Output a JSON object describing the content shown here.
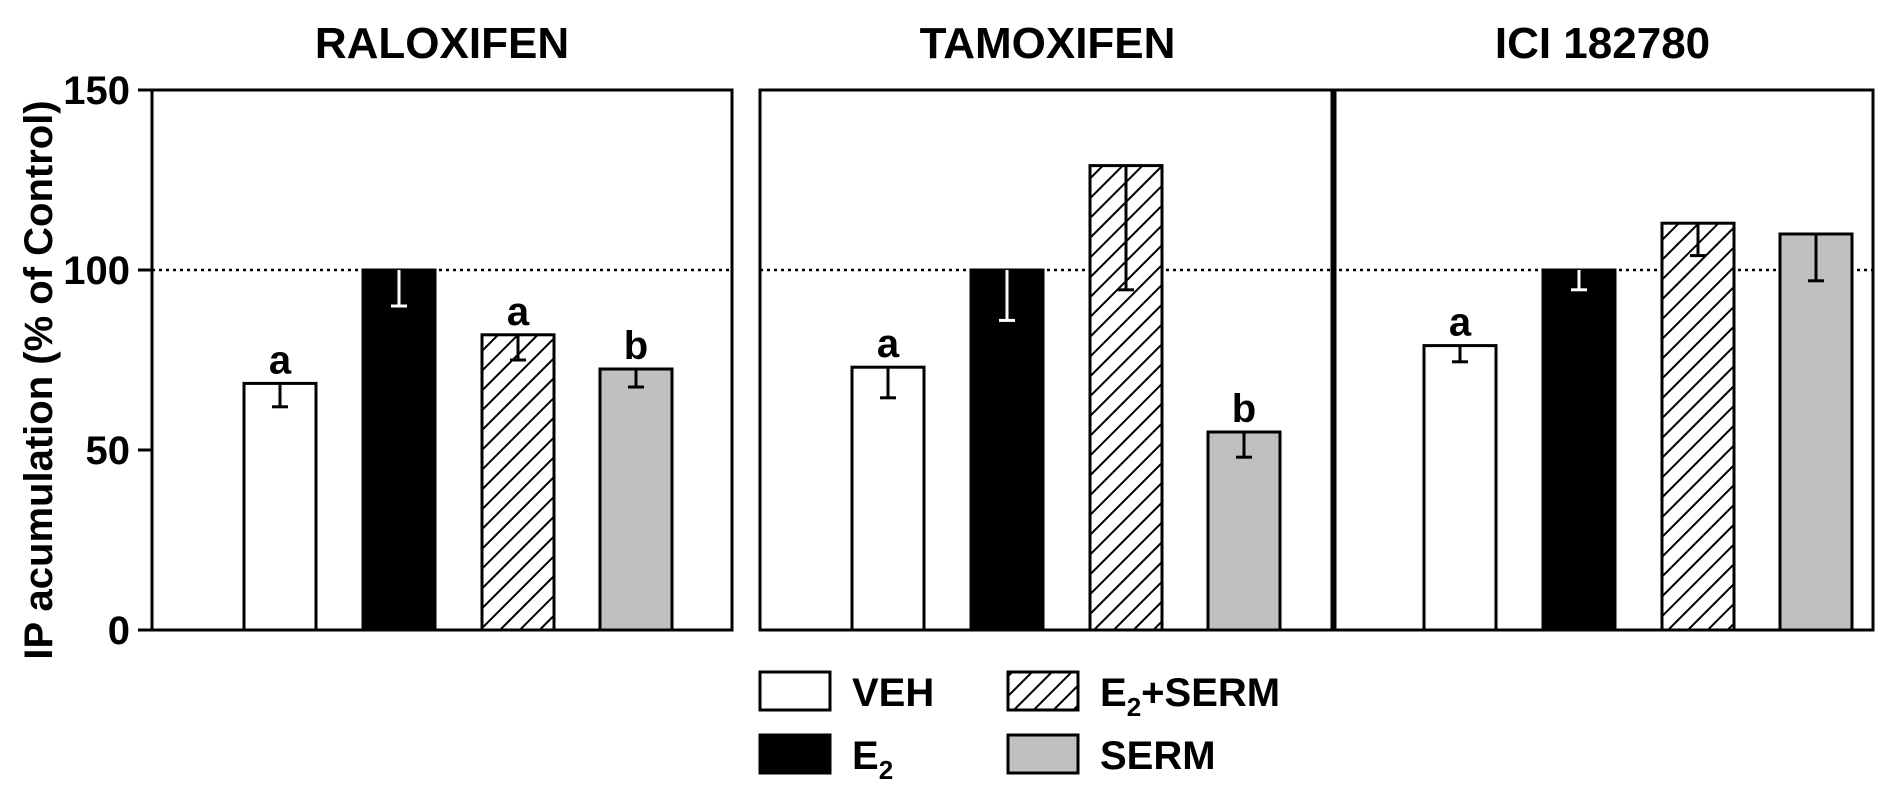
{
  "chart_data": {
    "type": "bar",
    "ylabel": "IP acumulation (% of Control)",
    "ylim": [
      0,
      150
    ],
    "yticks": [
      "0",
      "50",
      "100",
      "150"
    ],
    "reference_line": 100,
    "grid": false,
    "legend_placement": "bottom-center",
    "series": [
      {
        "name": "VEH",
        "pattern": "white"
      },
      {
        "name": "E2",
        "pattern": "black"
      },
      {
        "name": "E2+SERM",
        "pattern": "hatched"
      },
      {
        "name": "SERM",
        "pattern": "gray"
      }
    ],
    "legend": [
      {
        "base": "VEH",
        "sub": "",
        "rest": ""
      },
      {
        "base": "E",
        "sub": "2",
        "rest": "+SERM"
      },
      {
        "base": "E",
        "sub": "2",
        "rest": ""
      },
      {
        "base": "SERM",
        "sub": "",
        "rest": ""
      }
    ],
    "panels": [
      {
        "title": "RALOXIFEN",
        "bars": [
          {
            "series": "VEH",
            "value": 68.5,
            "error": 6.5,
            "label": "a"
          },
          {
            "series": "E2",
            "value": 100,
            "error": 10,
            "label": ""
          },
          {
            "series": "E2+SERM",
            "value": 82,
            "error": 7,
            "label": "a"
          },
          {
            "series": "SERM",
            "value": 72.5,
            "error": 5,
            "label": "b"
          }
        ]
      },
      {
        "title": "TAMOXIFEN",
        "bars": [
          {
            "series": "VEH",
            "value": 73,
            "error": 8.5,
            "label": "a"
          },
          {
            "series": "E2",
            "value": 100,
            "error": 14,
            "label": ""
          },
          {
            "series": "E2+SERM",
            "value": 129,
            "error": 34.5,
            "label": ""
          },
          {
            "series": "SERM",
            "value": 55,
            "error": 7,
            "label": "b"
          }
        ]
      },
      {
        "title": "ICI 182780",
        "bars": [
          {
            "series": "VEH",
            "value": 79,
            "error": 4.5,
            "label": "a"
          },
          {
            "series": "E2",
            "value": 100,
            "error": 5.5,
            "label": ""
          },
          {
            "series": "E2+SERM",
            "value": 113,
            "error": 9,
            "label": ""
          },
          {
            "series": "SERM",
            "value": 110,
            "error": 13,
            "label": ""
          }
        ]
      }
    ]
  },
  "colors": {
    "veh_fill": "#ffffff",
    "e2_fill": "#000000",
    "serm_fill": "#c0c0c0",
    "outline": "#000000"
  }
}
